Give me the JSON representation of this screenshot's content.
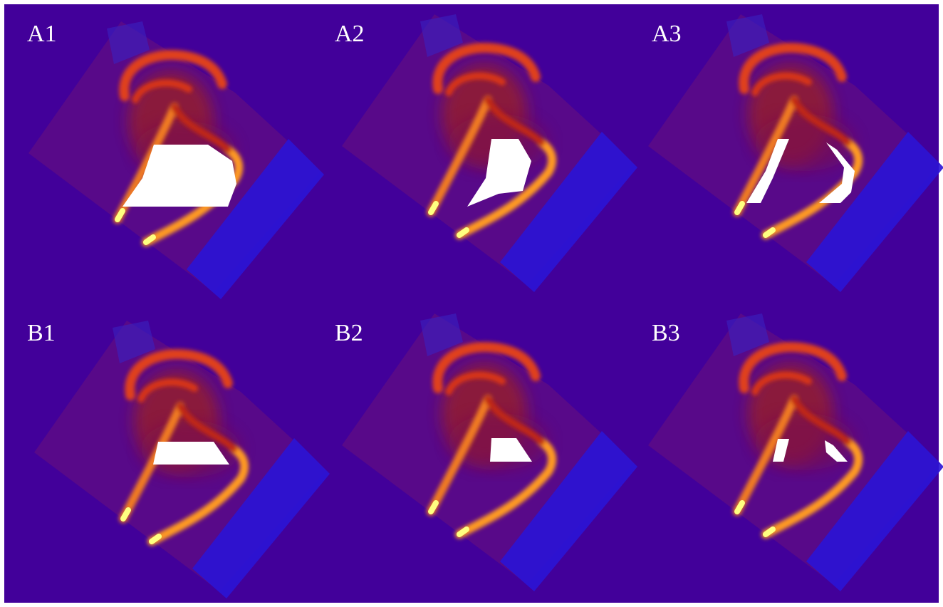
{
  "panels": [
    {
      "label": "A1"
    },
    {
      "label": "A2"
    },
    {
      "label": "A3"
    },
    {
      "label": "B1"
    },
    {
      "label": "B2"
    },
    {
      "label": "B3"
    }
  ]
}
